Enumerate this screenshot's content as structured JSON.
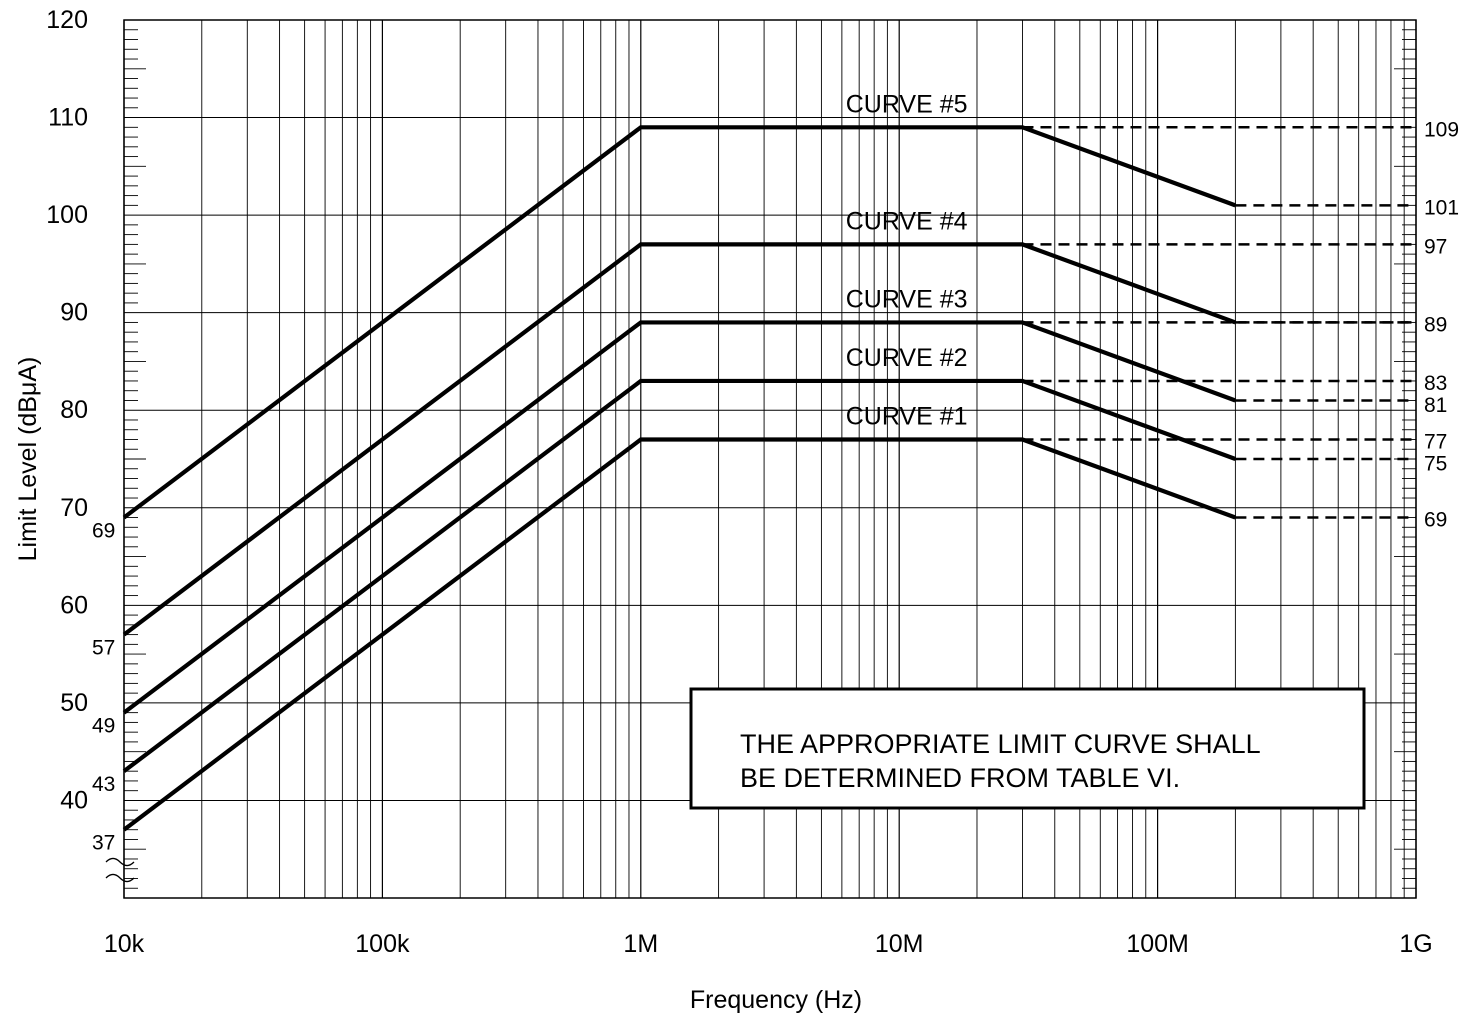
{
  "chart_data": {
    "type": "line",
    "title": "",
    "xlabel": "Frequency (Hz)",
    "ylabel": "Limit Level (dBμA)",
    "x_scale": "log",
    "xlim": [
      10000,
      1000000000
    ],
    "ylim": [
      30,
      120
    ],
    "grid": true,
    "x_ticks": [
      {
        "value": 10000,
        "label": "10k"
      },
      {
        "value": 100000,
        "label": "100k"
      },
      {
        "value": 1000000,
        "label": "1M"
      },
      {
        "value": 10000000,
        "label": "10M"
      },
      {
        "value": 100000000,
        "label": "100M"
      },
      {
        "value": 1000000000,
        "label": "1G"
      }
    ],
    "y_ticks": [
      {
        "value": 40,
        "label": "40"
      },
      {
        "value": 50,
        "label": "50"
      },
      {
        "value": 60,
        "label": "60"
      },
      {
        "value": 70,
        "label": "70"
      },
      {
        "value": 80,
        "label": "80"
      },
      {
        "value": 90,
        "label": "90"
      },
      {
        "value": 100,
        "label": "100"
      },
      {
        "value": 110,
        "label": "110"
      },
      {
        "value": 120,
        "label": "120"
      }
    ],
    "series": [
      {
        "name": "CURVE #1",
        "x": [
          10000,
          1000000,
          30000000,
          200000000
        ],
        "y": [
          37,
          77,
          77,
          69
        ],
        "extension": {
          "x": [
            30000000,
            1000000000
          ],
          "y": [
            77,
            77
          ]
        },
        "end_extension_y": 69,
        "start_label": "37",
        "right_labels": [
          "77",
          "69"
        ]
      },
      {
        "name": "CURVE #2",
        "x": [
          10000,
          1000000,
          30000000,
          200000000
        ],
        "y": [
          43,
          83,
          83,
          75
        ],
        "extension": {
          "x": [
            30000000,
            1000000000
          ],
          "y": [
            83,
            83
          ]
        },
        "end_extension_y": 75,
        "start_label": "43",
        "right_labels": [
          "83",
          "75"
        ]
      },
      {
        "name": "CURVE #3",
        "x": [
          10000,
          1000000,
          30000000,
          200000000
        ],
        "y": [
          49,
          89,
          89,
          81
        ],
        "extension": {
          "x": [
            30000000,
            1000000000
          ],
          "y": [
            89,
            89
          ]
        },
        "end_extension_y": 81,
        "start_label": "49",
        "right_labels": [
          "89",
          "81"
        ]
      },
      {
        "name": "CURVE #4",
        "x": [
          10000,
          1000000,
          30000000,
          200000000
        ],
        "y": [
          57,
          97,
          97,
          89
        ],
        "extension": {
          "x": [
            30000000,
            1000000000
          ],
          "y": [
            97,
            97
          ]
        },
        "end_extension_y": 89,
        "start_label": "57",
        "right_labels": [
          "97"
        ]
      },
      {
        "name": "CURVE #5",
        "x": [
          10000,
          1000000,
          30000000,
          200000000
        ],
        "y": [
          69,
          109,
          109,
          101
        ],
        "extension": {
          "x": [
            30000000,
            1000000000
          ],
          "y": [
            109,
            109
          ]
        },
        "end_extension_y": 101,
        "start_label": "69",
        "right_labels": [
          "109",
          "101"
        ]
      }
    ],
    "annotations": [
      "THE APPROPRIATE LIMIT CURVE SHALL",
      "BE DETERMINED FROM TABLE VI."
    ]
  }
}
